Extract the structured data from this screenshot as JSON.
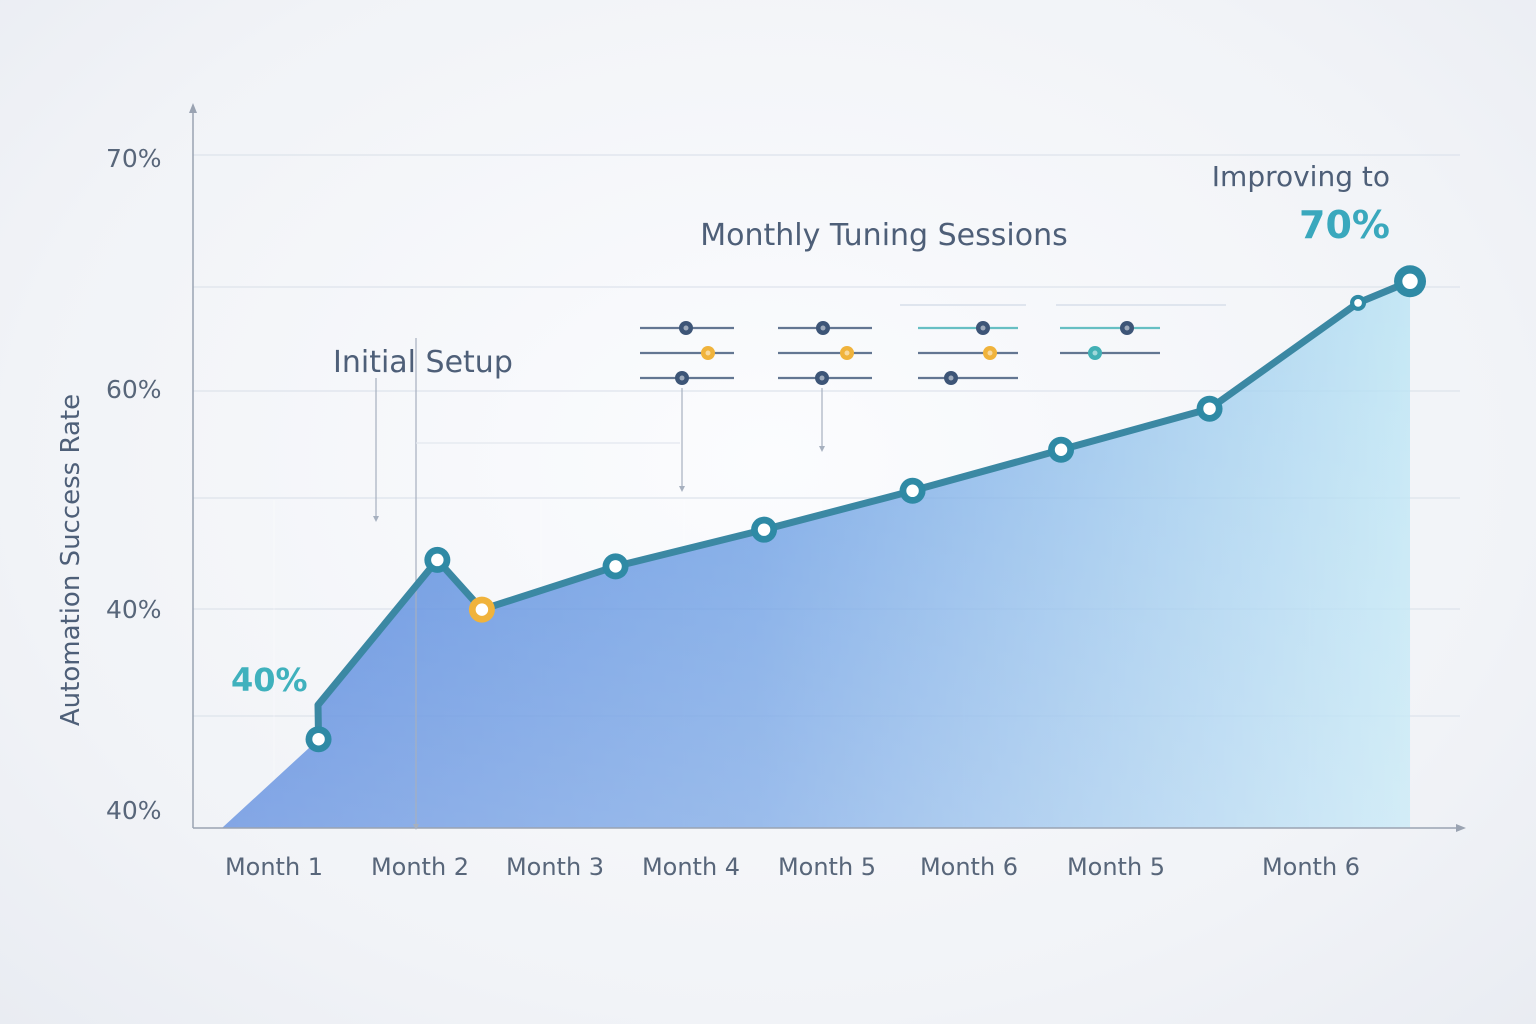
{
  "chart_data": {
    "type": "area",
    "ylabel": "Automation Success Rate",
    "y_tick_labels": [
      "70%",
      "60%",
      "40%",
      "40%"
    ],
    "categories": [
      "Month 1",
      "Month 2",
      "Month 3",
      "Month 4",
      "Month 5",
      "Month 6",
      "Month 5",
      "Month 6"
    ],
    "points": [
      {
        "x": 0.3,
        "y": 35.5
      },
      {
        "x": 1.1,
        "y": 43.8
      },
      {
        "x": 1.4,
        "y": 41.5,
        "highlight": true
      },
      {
        "x": 2.3,
        "y": 43.5
      },
      {
        "x": 3.3,
        "y": 45.2
      },
      {
        "x": 4.3,
        "y": 47.0
      },
      {
        "x": 5.3,
        "y": 48.9
      },
      {
        "x": 6.3,
        "y": 50.8
      },
      {
        "x": 7.3,
        "y": 55.7
      },
      {
        "x": 7.65,
        "y": 56.7
      }
    ],
    "annotations": {
      "start_value": "40%",
      "initial_setup": "Initial Setup",
      "tuning_title": "Monthly Tuning Sessions",
      "improving_prefix": "Improving to",
      "improving_value": "70%"
    },
    "colors": {
      "line": "#3b88a3",
      "area_top": "#4f82dc",
      "area_right": "#a9daf0",
      "marker_ring": "#2f8aa5",
      "highlight": "#f0b33c",
      "slider_navy": "#3d5577",
      "slider_teal": "#42b0b5"
    },
    "grid": true
  }
}
